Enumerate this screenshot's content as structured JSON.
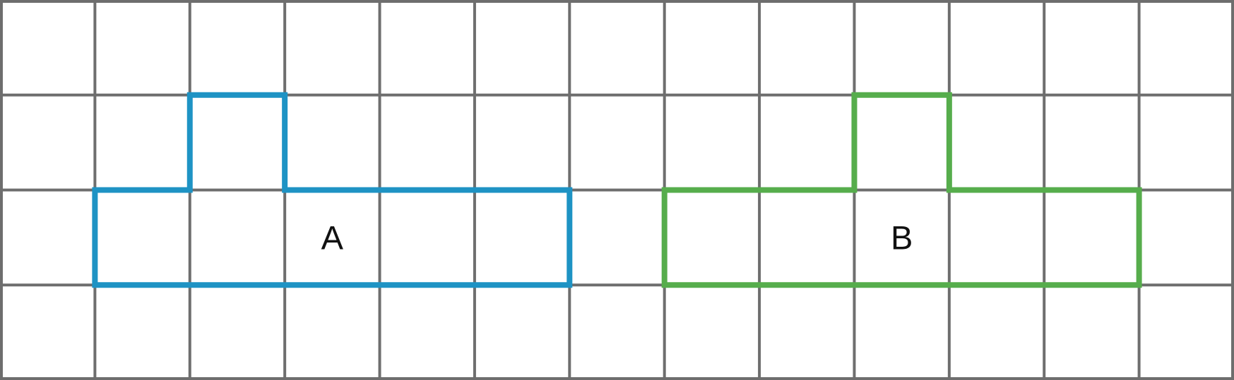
{
  "figure": {
    "background_color": "#ffffff",
    "grid": {
      "columns": 13,
      "rows": 4,
      "line_color": "#6e6e6e",
      "line_width": 4
    },
    "label_color": "#111111",
    "label_font_size": 47,
    "shapes": [
      {
        "label": "A",
        "color": "#1e93c4",
        "stroke_width": 8,
        "polygon_cells": [
          [
            1,
            2
          ],
          [
            2,
            2
          ],
          [
            2,
            1
          ],
          [
            3,
            1
          ],
          [
            3,
            2
          ],
          [
            6,
            2
          ],
          [
            6,
            3
          ],
          [
            1,
            3
          ]
        ],
        "label_cell": [
          3.5,
          2.5
        ]
      },
      {
        "label": "B",
        "color": "#56ad4c",
        "stroke_width": 8,
        "polygon_cells": [
          [
            7,
            2
          ],
          [
            9,
            2
          ],
          [
            9,
            1
          ],
          [
            10,
            1
          ],
          [
            10,
            2
          ],
          [
            12,
            2
          ],
          [
            12,
            3
          ],
          [
            7,
            3
          ]
        ],
        "label_cell": [
          9.5,
          2.5
        ]
      }
    ]
  }
}
